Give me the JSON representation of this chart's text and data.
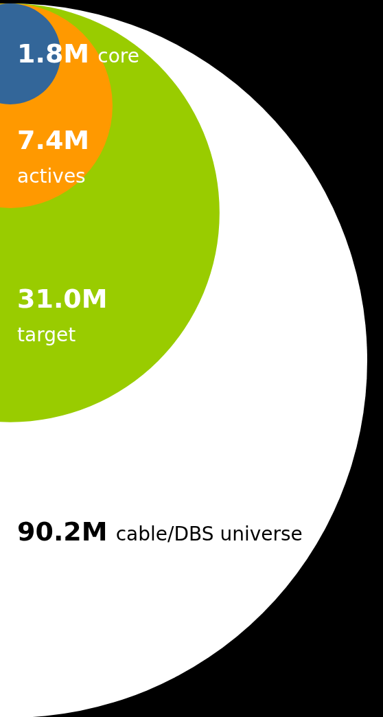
{
  "chart_data": {
    "type": "other",
    "categories": [
      "core",
      "actives",
      "target",
      "cable/DBS universe"
    ],
    "values": [
      1.8,
      7.4,
      31.0,
      90.2
    ],
    "value_labels": [
      "1.8M",
      "7.4M",
      "31.0M",
      "90.2M"
    ],
    "colors": [
      "#336699",
      "#ff9900",
      "#99cc00",
      "#ffffff"
    ]
  }
}
